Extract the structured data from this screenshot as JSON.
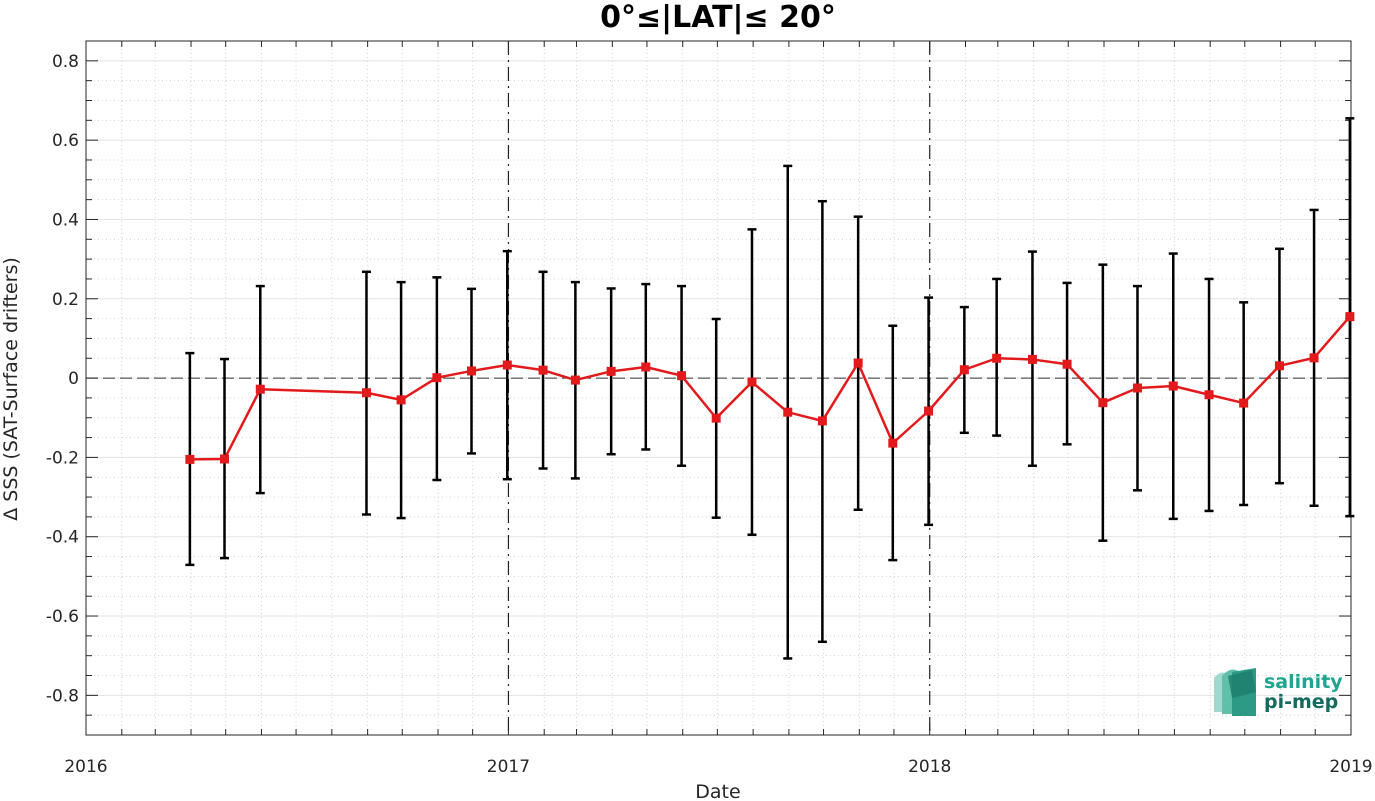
{
  "chart_data": {
    "type": "line",
    "title": "0°≤|LAT|≤ 20°",
    "xlabel": "Date",
    "ylabel": "Δ SSS (SAT-Surface drifters)",
    "xlim": [
      "2016-01-01",
      "2019-01-01"
    ],
    "ylim": [
      -0.9,
      0.85
    ],
    "x_ticks": [
      "2016",
      "2017",
      "2018",
      "2019"
    ],
    "y_ticks": [
      "0.8",
      "0.6",
      "0.4",
      "0.2",
      "0",
      "-0.2",
      "-0.4",
      "-0.6",
      "-0.8"
    ],
    "y_tick_values": [
      0.8,
      0.6,
      0.4,
      0.2,
      0,
      -0.2,
      -0.4,
      -0.6,
      -0.8
    ],
    "grid": true,
    "reference_line_y": 0,
    "year_boundaries": [
      "2017-01-01",
      "2018-01-01"
    ],
    "line_color": "#e31a1c",
    "errorbar_color": "#000000",
    "series": [
      {
        "x": [
          "2016-03-31",
          "2016-04-30",
          "2016-05-31",
          "2016-08-31",
          "2016-09-30",
          "2016-10-31",
          "2016-11-30",
          "2016-12-31",
          "2017-01-31",
          "2017-02-28",
          "2017-03-31",
          "2017-04-30",
          "2017-05-31",
          "2017-06-30",
          "2017-07-31",
          "2017-08-31",
          "2017-09-30",
          "2017-10-31",
          "2017-11-30",
          "2017-12-31",
          "2018-01-31",
          "2018-02-28",
          "2018-03-31",
          "2018-04-30",
          "2018-05-31",
          "2018-06-30",
          "2018-07-31",
          "2018-08-31",
          "2018-09-30",
          "2018-10-31",
          "2018-11-30",
          "2018-12-31"
        ],
        "y": [
          -0.205,
          -0.204,
          -0.028,
          -0.037,
          -0.055,
          0.001,
          0.018,
          0.033,
          0.02,
          -0.005,
          0.017,
          0.028,
          0.006,
          -0.101,
          -0.01,
          -0.086,
          -0.108,
          0.038,
          -0.164,
          -0.083,
          0.021,
          0.05,
          0.047,
          0.035,
          -0.062,
          -0.025,
          -0.02,
          -0.042,
          -0.063,
          0.031,
          0.051,
          0.155
        ],
        "y_upper": [
          0.063,
          0.048,
          0.232,
          0.268,
          0.242,
          0.254,
          0.225,
          0.32,
          0.268,
          0.242,
          0.226,
          0.237,
          0.232,
          0.149,
          0.375,
          0.535,
          0.446,
          0.407,
          0.132,
          0.203,
          0.179,
          0.25,
          0.319,
          0.24,
          0.286,
          0.232,
          0.314,
          0.25,
          0.191,
          0.326,
          0.424,
          0.655
        ],
        "y_lower": [
          -0.471,
          -0.454,
          -0.29,
          -0.344,
          -0.353,
          -0.257,
          -0.19,
          -0.255,
          -0.228,
          -0.253,
          -0.192,
          -0.18,
          -0.221,
          -0.352,
          -0.395,
          -0.707,
          -0.665,
          -0.332,
          -0.459,
          -0.37,
          -0.138,
          -0.145,
          -0.221,
          -0.167,
          -0.41,
          -0.283,
          -0.355,
          -0.335,
          -0.32,
          -0.265,
          -0.322,
          -0.348
        ]
      }
    ]
  },
  "logo": {
    "line1": "salinity",
    "line2": "pi-mep",
    "color1": "#1fa58f",
    "color2": "#156b5e"
  }
}
